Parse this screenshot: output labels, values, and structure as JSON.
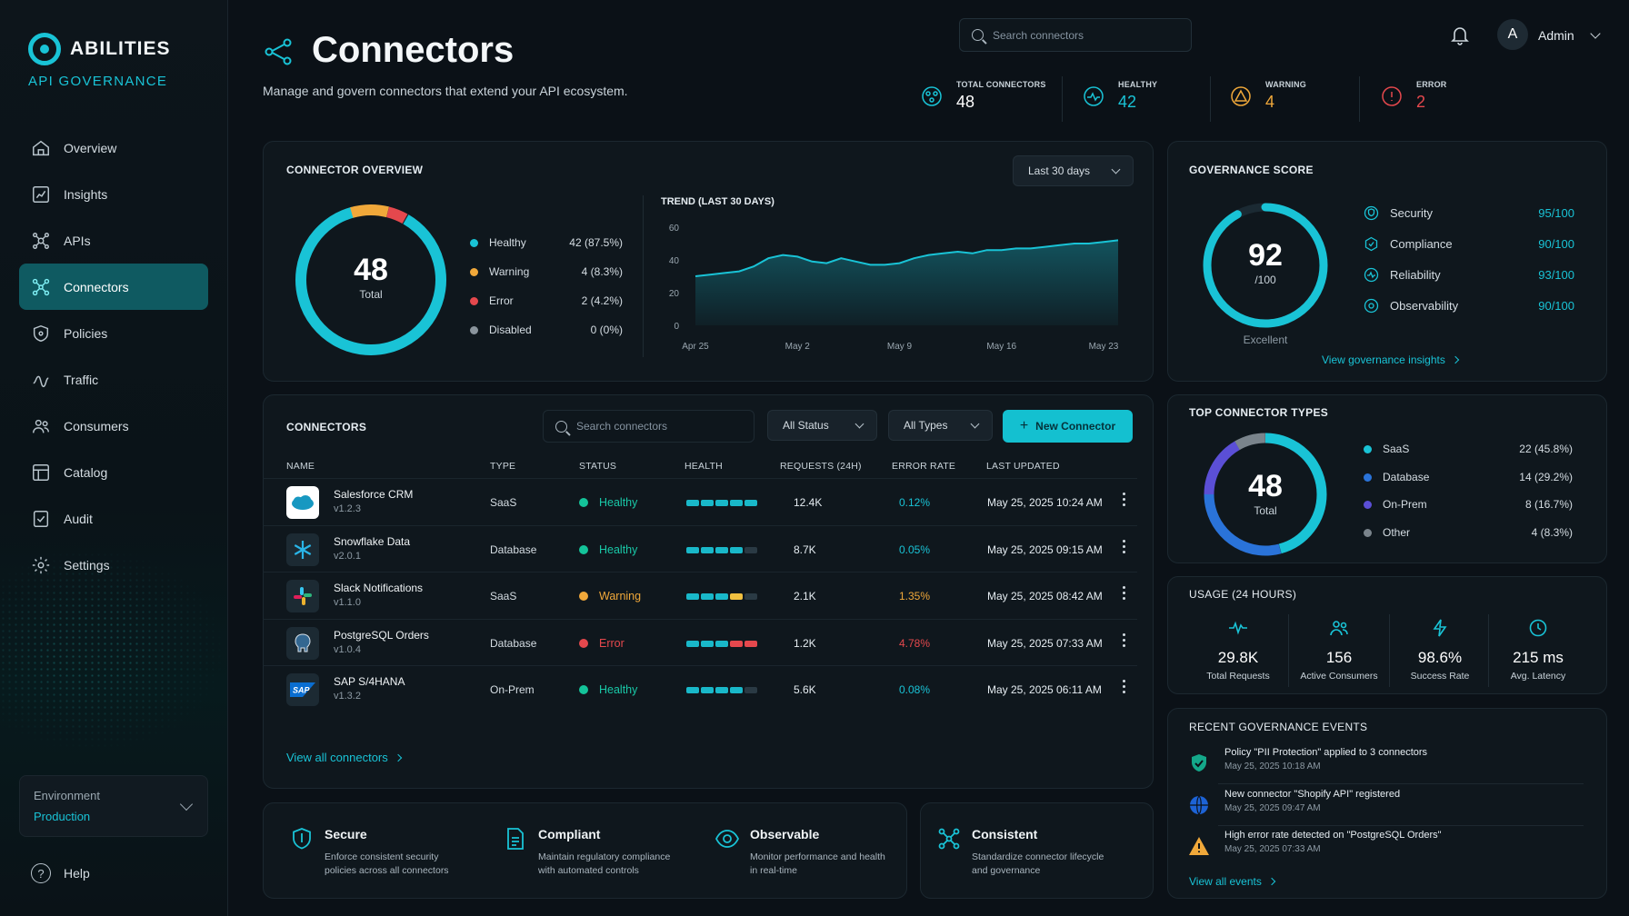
{
  "brand": {
    "name": "ABILITIES",
    "subtitle": "API GOVERNANCE"
  },
  "sidebar": {
    "items": [
      {
        "label": "Overview",
        "icon": "home-icon"
      },
      {
        "label": "Insights",
        "icon": "insights-icon"
      },
      {
        "label": "APIs",
        "icon": "apis-icon"
      },
      {
        "label": "Connectors",
        "icon": "connectors-icon",
        "active": true
      },
      {
        "label": "Policies",
        "icon": "shield-icon"
      },
      {
        "label": "Traffic",
        "icon": "traffic-icon"
      },
      {
        "label": "Consumers",
        "icon": "users-icon"
      },
      {
        "label": "Catalog",
        "icon": "catalog-icon"
      },
      {
        "label": "Audit",
        "icon": "audit-icon"
      },
      {
        "label": "Settings",
        "icon": "gear-icon"
      }
    ],
    "environment": {
      "label": "Environment",
      "value": "Production"
    },
    "help": "Help"
  },
  "header": {
    "title": "Connectors",
    "subtitle": "Manage and govern connectors that extend your API ecosystem.",
    "search_placeholder": "Search connectors",
    "user_initial": "A",
    "user_name": "Admin"
  },
  "stats": [
    {
      "label": "TOTAL CONNECTORS",
      "value": "48",
      "color": "#ffffff"
    },
    {
      "label": "HEALTHY",
      "value": "42",
      "color": "#19c3d6"
    },
    {
      "label": "WARNING",
      "value": "4",
      "color": "#f0a83a"
    },
    {
      "label": "ERROR",
      "value": "2",
      "color": "#e5484d"
    }
  ],
  "overview": {
    "title": "CONNECTOR OVERVIEW",
    "range": "Last 30 days",
    "total": "48",
    "total_label": "Total",
    "legend": [
      {
        "label": "Healthy",
        "value": "42 (87.5%)",
        "color": "#19c3d6"
      },
      {
        "label": "Warning",
        "value": "4 (8.3%)",
        "color": "#f0a83a"
      },
      {
        "label": "Error",
        "value": "2 (4.2%)",
        "color": "#e5484d"
      },
      {
        "label": "Disabled",
        "value": "0 (0%)",
        "color": "#8a949c"
      }
    ]
  },
  "trend_title": "TREND (LAST 30 DAYS)",
  "chart_data": {
    "type": "area",
    "title": "TREND (LAST 30 DAYS)",
    "x_ticks": [
      "Apr 25",
      "May 2",
      "May 9",
      "May 16",
      "May 23"
    ],
    "ylim": [
      0,
      60
    ],
    "y_ticks": [
      "0",
      "20",
      "40",
      "60"
    ],
    "values": [
      30,
      31,
      32,
      33,
      36,
      41,
      43,
      42,
      39,
      38,
      41,
      39,
      37,
      37,
      38,
      41,
      43,
      44,
      45,
      44,
      46,
      46,
      47,
      47,
      48,
      49,
      50,
      50,
      51,
      52
    ],
    "color": "#19c3d6"
  },
  "governance": {
    "title": "GOVERNANCE SCORE",
    "score": "92",
    "out_of": "/100",
    "rating": "Excellent",
    "score_value": 92,
    "items": [
      {
        "label": "Security",
        "value": "95/100",
        "icon": "security-icon"
      },
      {
        "label": "Compliance",
        "value": "90/100",
        "icon": "compliance-icon"
      },
      {
        "label": "Reliability",
        "value": "93/100",
        "icon": "reliability-icon"
      },
      {
        "label": "Observability",
        "value": "90/100",
        "icon": "observability-icon"
      }
    ],
    "link": "View governance insights"
  },
  "connectors": {
    "title": "CONNECTORS",
    "search_placeholder": "Search connectors",
    "status_filter": "All Status",
    "type_filter": "All Types",
    "new_button": "New Connector",
    "columns": [
      "NAME",
      "TYPE",
      "STATUS",
      "HEALTH",
      "REQUESTS (24H)",
      "ERROR RATE",
      "LAST UPDATED"
    ],
    "rows": [
      {
        "name": "Salesforce CRM",
        "version": "v1.2.3",
        "type": "SaaS",
        "status": "Healthy",
        "requests": "12.4K",
        "error_rate": "0.12%",
        "updated": "May 25, 2025 10:24 AM",
        "logo": "salesforce",
        "health": [
          1,
          1,
          1,
          1,
          1
        ]
      },
      {
        "name": "Snowflake Data",
        "version": "v2.0.1",
        "type": "Database",
        "status": "Healthy",
        "requests": "8.7K",
        "error_rate": "0.05%",
        "updated": "May 25, 2025 09:15 AM",
        "logo": "snowflake",
        "health": [
          1,
          1,
          1,
          1,
          0
        ]
      },
      {
        "name": "Slack Notifications",
        "version": "v1.1.0",
        "type": "SaaS",
        "status": "Warning",
        "requests": "2.1K",
        "error_rate": "1.35%",
        "updated": "May 25, 2025 08:42 AM",
        "logo": "slack",
        "health": [
          1,
          1,
          1,
          2,
          0
        ]
      },
      {
        "name": "PostgreSQL Orders",
        "version": "v1.0.4",
        "type": "Database",
        "status": "Error",
        "requests": "1.2K",
        "error_rate": "4.78%",
        "updated": "May 25, 2025 07:33 AM",
        "logo": "postgres",
        "health": [
          1,
          1,
          1,
          3,
          3
        ]
      },
      {
        "name": "SAP S/4HANA",
        "version": "v1.3.2",
        "type": "On-Prem",
        "status": "Healthy",
        "requests": "5.6K",
        "error_rate": "0.08%",
        "updated": "May 25, 2025 06:11 AM",
        "logo": "sap",
        "health": [
          1,
          1,
          1,
          1,
          0
        ]
      }
    ],
    "view_all": "View all connectors"
  },
  "types": {
    "title": "TOP CONNECTOR TYPES",
    "total": "48",
    "total_label": "Total",
    "items": [
      {
        "label": "SaaS",
        "value": "22 (45.8%)",
        "color": "#19c3d6"
      },
      {
        "label": "Database",
        "value": "14 (29.2%)",
        "color": "#2a73d9"
      },
      {
        "label": "On-Prem",
        "value": "8 (16.7%)",
        "color": "#5b4fd6"
      },
      {
        "label": "Other",
        "value": "4 (8.3%)",
        "color": "#7a848c"
      }
    ]
  },
  "usage": {
    "title": "USAGE (24 HOURS)",
    "items": [
      {
        "value": "29.8K",
        "label": "Total Requests",
        "icon": "pulse-icon"
      },
      {
        "value": "156",
        "label": "Active Consumers",
        "icon": "users-icon"
      },
      {
        "value": "98.6%",
        "label": "Success Rate",
        "icon": "bolt-icon"
      },
      {
        "value": "215 ms",
        "label": "Avg. Latency",
        "icon": "clock-icon"
      }
    ]
  },
  "events": {
    "title": "RECENT GOVERNANCE EVENTS",
    "items": [
      {
        "text": "Policy \"PII Protection\" applied to 3 connectors",
        "date": "May 25, 2025 10:18 AM",
        "icon": "shield-check-icon"
      },
      {
        "text": "New connector \"Shopify API\" registered",
        "date": "May 25, 2025 09:47 AM",
        "icon": "globe-icon"
      },
      {
        "text": "High error rate detected on \"PostgreSQL Orders\"",
        "date": "May 25, 2025 07:33 AM",
        "icon": "warning-icon"
      }
    ],
    "link": "View all events"
  },
  "features": [
    {
      "title": "Secure",
      "desc": "Enforce consistent security policies across all connectors",
      "icon": "shield-icon"
    },
    {
      "title": "Compliant",
      "desc": "Maintain regulatory compliance with automated controls",
      "icon": "document-icon"
    },
    {
      "title": "Observable",
      "desc": "Monitor performance and health in real-time",
      "icon": "eye-icon"
    },
    {
      "title": "Consistent",
      "desc": "Standardize connector lifecycle and governance",
      "icon": "network-icon"
    }
  ]
}
